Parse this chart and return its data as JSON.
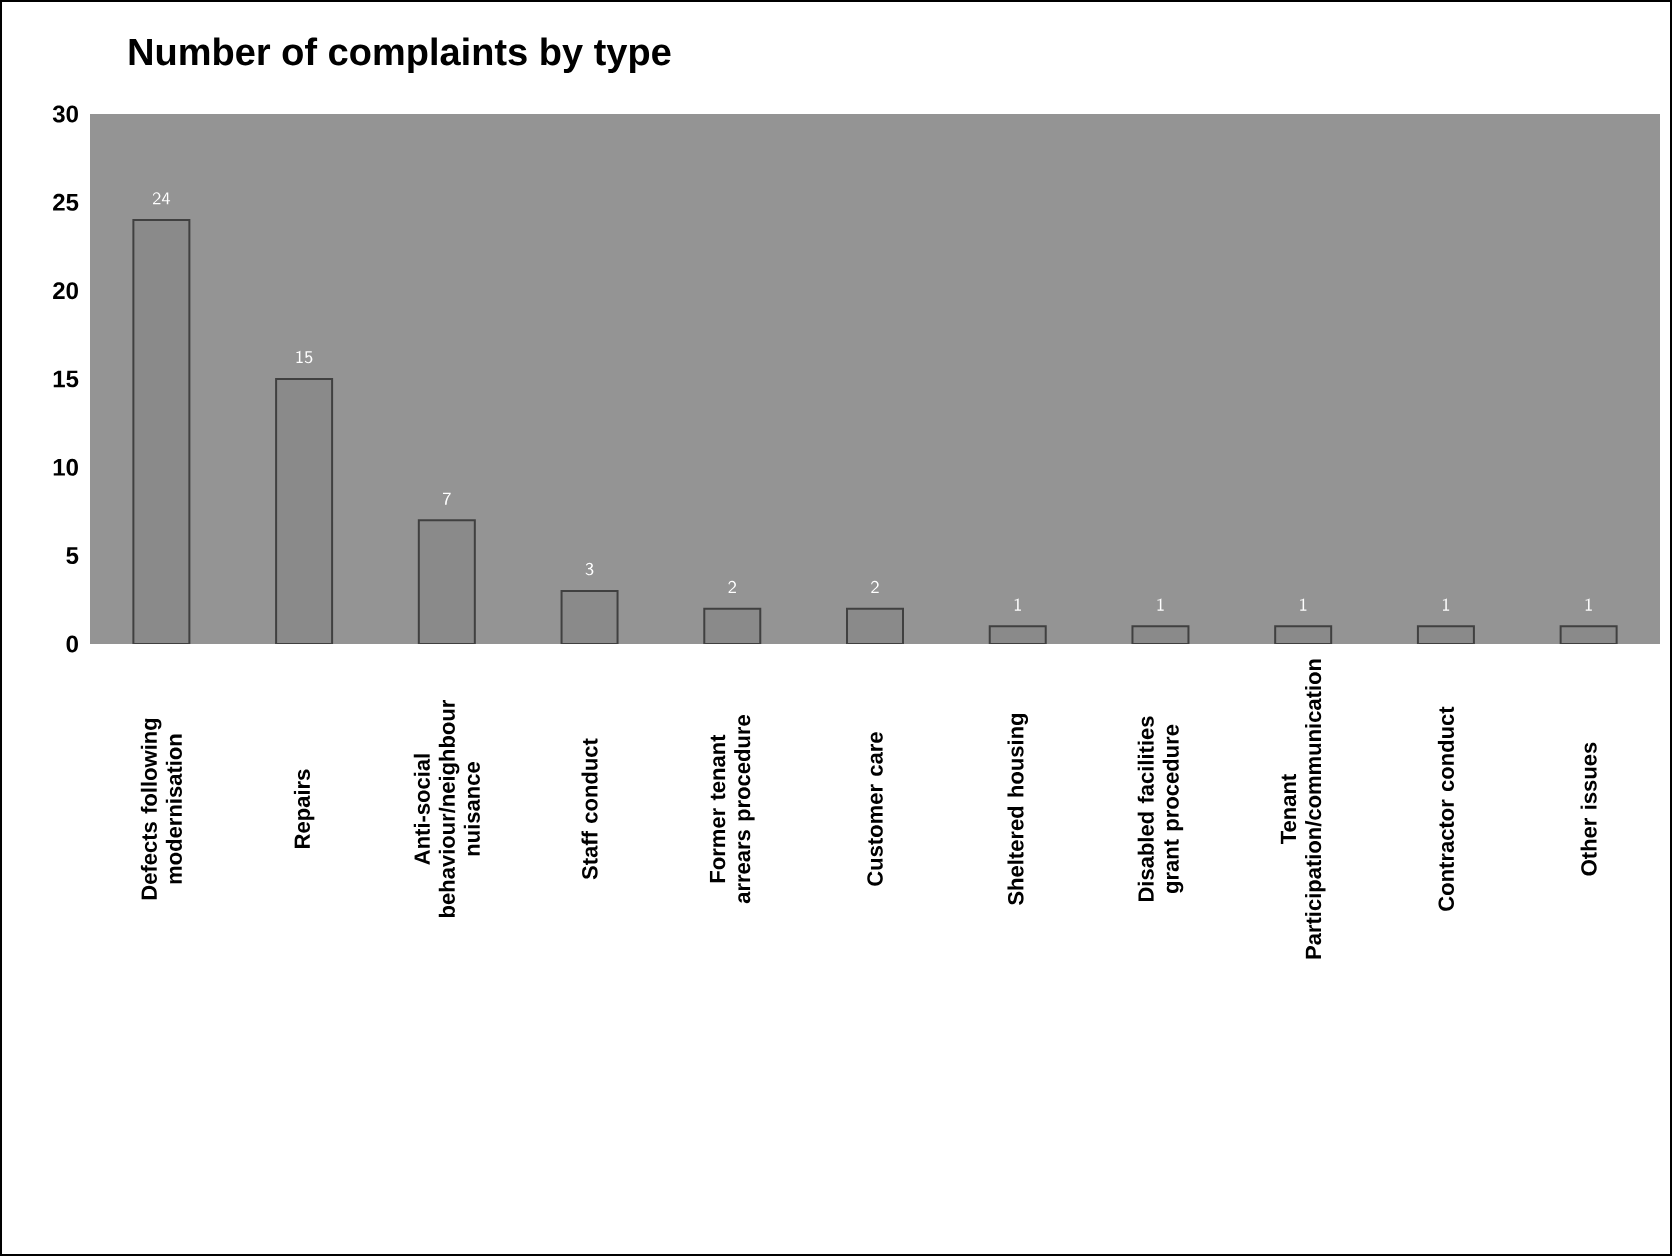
{
  "chart_data": {
    "type": "bar",
    "title": "Number of complaints by type",
    "categories": [
      "Defects following modernisation",
      "Repairs",
      "Anti-social behaviour/neighbour nuisance",
      "Staff conduct",
      "Former tenant arrears procedure",
      "Customer care",
      "Sheltered housing",
      "Disabled facilities grant procedure",
      "Tenant Participation/communication",
      "Contractor conduct",
      "Other issues"
    ],
    "values": [
      24,
      15,
      7,
      3,
      2,
      2,
      1,
      1,
      1,
      1,
      1
    ],
    "color": "#8a8a8a",
    "ylim": [
      0,
      30
    ],
    "yticks": [
      0,
      5,
      10,
      15,
      20,
      25,
      30
    ],
    "data_labels": true,
    "grid": false
  }
}
